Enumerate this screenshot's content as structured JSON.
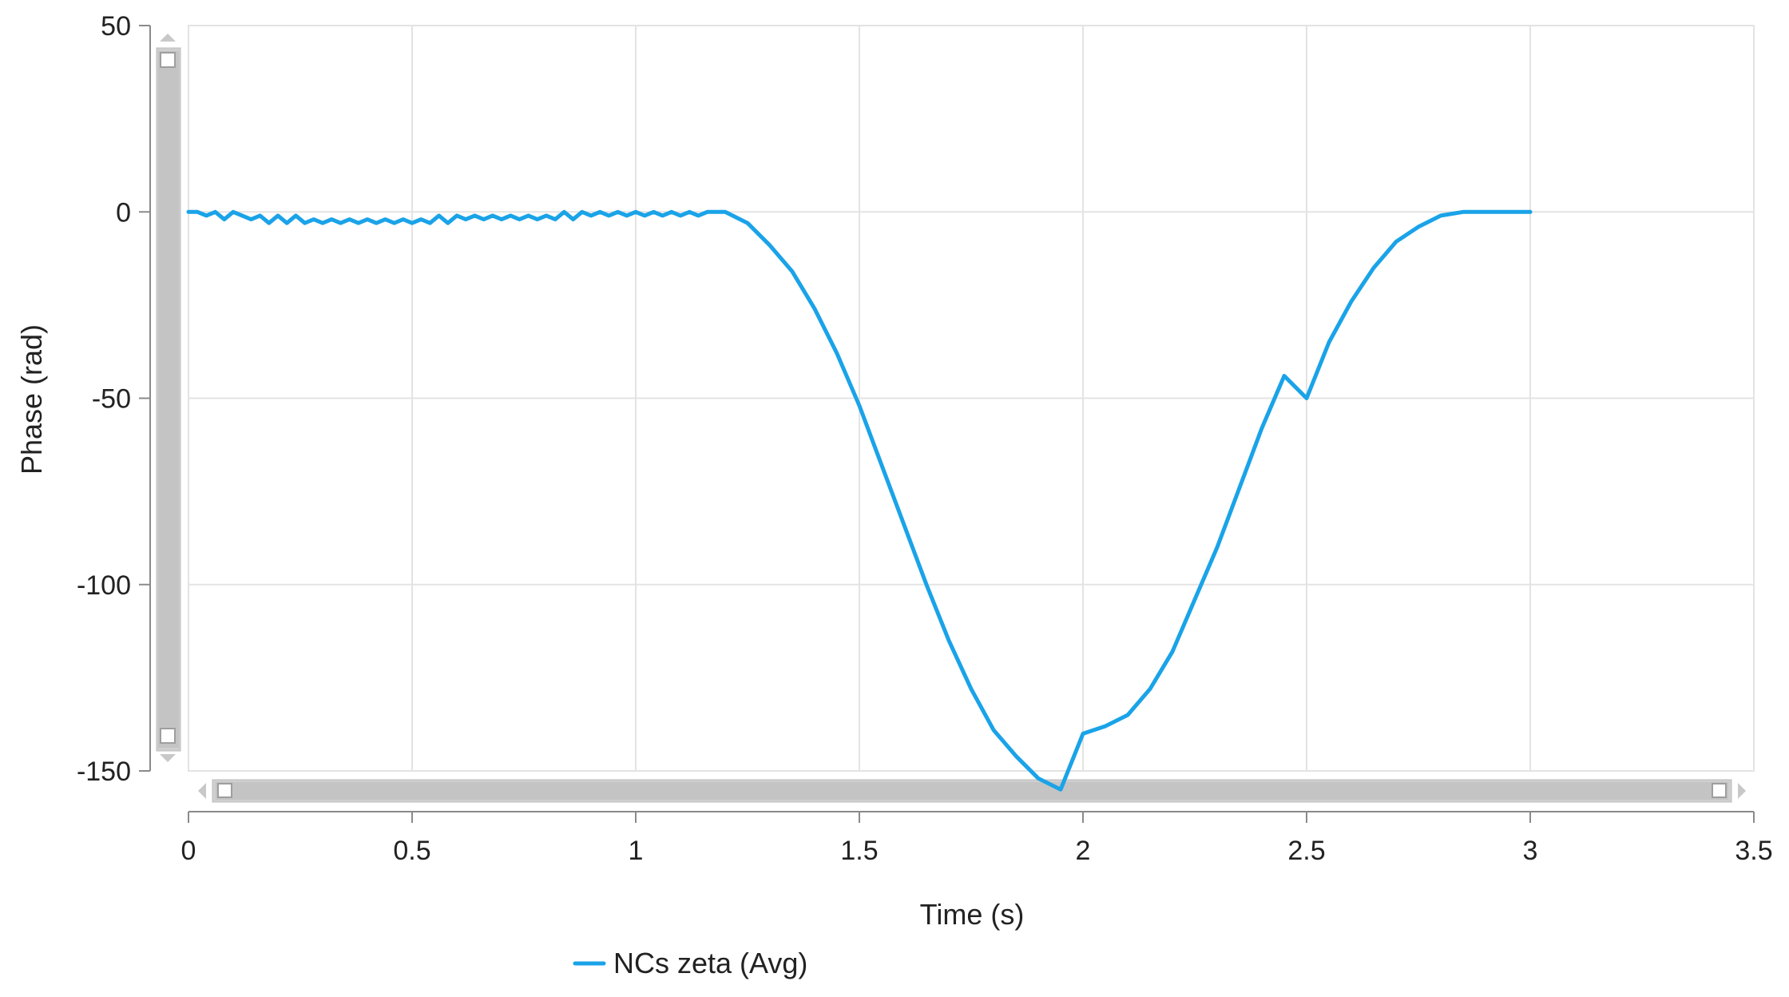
{
  "chart_data": {
    "type": "line",
    "title": "",
    "xlabel": "Time (s)",
    "ylabel": "Phase (rad)",
    "xlim": [
      0,
      3.5
    ],
    "ylim": [
      -150,
      50
    ],
    "x_ticks": [
      0,
      0.5,
      1,
      1.5,
      2,
      2.5,
      3,
      3.5
    ],
    "y_ticks": [
      50,
      0,
      -50,
      -100,
      -150
    ],
    "x_tick_labels": [
      "0",
      "0.5",
      "1",
      "1.5",
      "2",
      "2.5",
      "3",
      "3.5"
    ],
    "y_tick_labels": [
      "50",
      "0",
      "-50",
      "-100",
      "-150"
    ],
    "grid": true,
    "legend_position": "bottom-left",
    "series": [
      {
        "name": "NCs zeta (Avg)",
        "color": "#1aa3e8",
        "x": [
          0,
          0.02,
          0.04,
          0.06,
          0.08,
          0.1,
          0.12,
          0.14,
          0.16,
          0.18,
          0.2,
          0.22,
          0.24,
          0.26,
          0.28,
          0.3,
          0.32,
          0.34,
          0.36,
          0.38,
          0.4,
          0.42,
          0.44,
          0.46,
          0.48,
          0.5,
          0.52,
          0.54,
          0.56,
          0.58,
          0.6,
          0.62,
          0.64,
          0.66,
          0.68,
          0.7,
          0.72,
          0.74,
          0.76,
          0.78,
          0.8,
          0.82,
          0.84,
          0.86,
          0.88,
          0.9,
          0.92,
          0.94,
          0.96,
          0.98,
          1.0,
          1.02,
          1.04,
          1.06,
          1.08,
          1.1,
          1.12,
          1.14,
          1.16,
          1.18,
          1.2,
          1.25,
          1.3,
          1.35,
          1.4,
          1.45,
          1.5,
          1.55,
          1.6,
          1.65,
          1.7,
          1.75,
          1.8,
          1.85,
          1.9,
          1.95,
          2.0,
          2.05,
          2.1,
          2.15,
          2.2,
          2.25,
          2.3,
          2.35,
          2.4,
          2.45,
          2.5,
          2.55,
          2.6,
          2.65,
          2.7,
          2.75,
          2.8,
          2.85,
          2.9,
          2.95,
          3.0
        ],
        "y": [
          0,
          0,
          -1,
          0,
          -2,
          0,
          -1,
          -2,
          -1,
          -3,
          -1,
          -3,
          -1,
          -3,
          -2,
          -3,
          -2,
          -3,
          -2,
          -3,
          -2,
          -3,
          -2,
          -3,
          -2,
          -3,
          -2,
          -3,
          -1,
          -3,
          -1,
          -2,
          -1,
          -2,
          -1,
          -2,
          -1,
          -2,
          -1,
          -2,
          -1,
          -2,
          0,
          -2,
          0,
          -1,
          0,
          -1,
          0,
          -1,
          0,
          -1,
          0,
          -1,
          0,
          -1,
          0,
          -1,
          0,
          0,
          0,
          -3,
          -9,
          -16,
          -26,
          -38,
          -52,
          -68,
          -84,
          -100,
          -115,
          -128,
          -139,
          -146,
          -152,
          -155,
          -140,
          -138,
          -135,
          -128,
          -118,
          -104,
          -90,
          -74,
          -58,
          -44,
          -50,
          -35,
          -24,
          -15,
          -8,
          -4,
          -1,
          0,
          0,
          0,
          0
        ]
      }
    ]
  }
}
